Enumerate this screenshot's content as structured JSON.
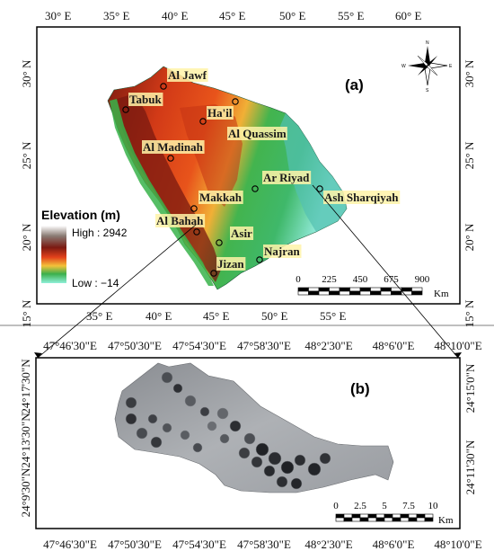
{
  "panel_a": {
    "label": "(a)",
    "top_lon_ticks": [
      "30° E",
      "35° E",
      "40° E",
      "45° E",
      "50° E",
      "55° E",
      "60° E"
    ],
    "bottom_lon_ticks": [
      "35° E",
      "40° E",
      "45° E",
      "50° E",
      "55° E"
    ],
    "left_lat_ticks": [
      "30° N",
      "25° N",
      "20° N",
      "15° N"
    ],
    "right_lat_ticks": [
      "30° N",
      "25° N",
      "20° N",
      "15° N"
    ],
    "regions": [
      {
        "name": "Al Jawf"
      },
      {
        "name": "Tabuk"
      },
      {
        "name": "Ha'il"
      },
      {
        "name": "Al Quassim"
      },
      {
        "name": "Al Madinah"
      },
      {
        "name": "Ar Riyad"
      },
      {
        "name": "Makkah"
      },
      {
        "name": "Ash Sharqiyah"
      },
      {
        "name": "Al Bahah"
      },
      {
        "name": "Asir"
      },
      {
        "name": "Najran"
      },
      {
        "name": "Jizan"
      }
    ],
    "legend": {
      "title": "Elevation (m)",
      "high": "High : 2942",
      "low": "Low : −14"
    },
    "scalebar": {
      "ticks": [
        "0",
        "225",
        "450",
        "675",
        "900"
      ],
      "unit": "Km"
    },
    "north_arrow": {
      "n": "N",
      "s": "S",
      "e": "E",
      "w": "W"
    }
  },
  "panel_b": {
    "label": "(b)",
    "top_lon_ticks": [
      "47°46'30\"E",
      "47°50'30\"E",
      "47°54'30\"E",
      "47°58'30\"E",
      "48°2'30\"E",
      "48°6'0\"E",
      "48°10'0\"E"
    ],
    "bottom_lon_ticks": [
      "47°46'30\"E",
      "47°50'30\"E",
      "47°54'30\"E",
      "47°58'30\"E",
      "48°2'30\"E",
      "48°6'0\"E",
      "48°10'0\"E"
    ],
    "left_lat_ticks": [
      "24°17'30\"N",
      "24°13'30\"N",
      "24°9'30\"N"
    ],
    "right_lat_ticks": [
      "24°15'0\"N",
      "24°11'30\"N"
    ],
    "scalebar": {
      "ticks": [
        "0",
        "2.5",
        "5",
        "7.5",
        "10"
      ],
      "unit": "Km"
    }
  },
  "colors": {
    "high_elev": "#8b1a10",
    "mid_elev": "#e0441a",
    "low_green": "#3cb050",
    "coast_cyan": "#7fe3d3",
    "city_label_bg": "#fff3a8"
  }
}
